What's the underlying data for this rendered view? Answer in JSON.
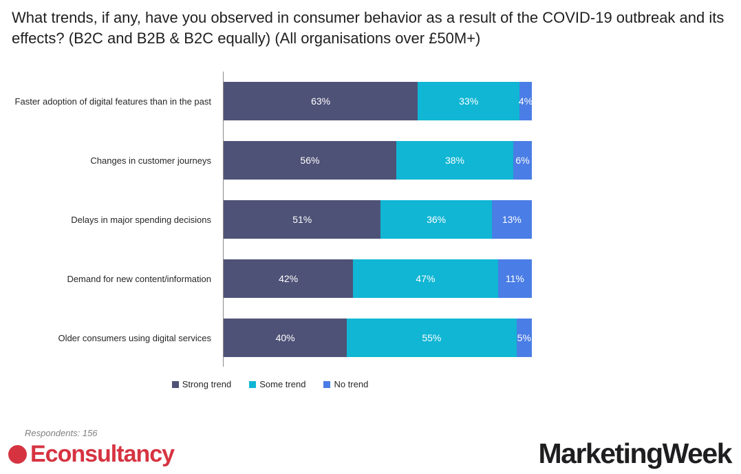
{
  "title": {
    "text": "What trends, if any, have you observed in consumer behavior as a result of the COVID-19 outbreak and its effects? (B2C and B2B & B2C equally) (All organisations over £50M+)"
  },
  "chart_data": {
    "type": "bar",
    "orientation": "horizontal",
    "stacked": true,
    "value_unit": "%",
    "xlim": [
      0,
      100
    ],
    "grid": false,
    "legend_position": "bottom",
    "value_labels": "inside, white",
    "categories": [
      "Faster adoption of digital features than in the past",
      "Changes in customer journeys",
      "Delays in major spending decisions",
      "Demand for new content/information",
      "Older consumers using digital services"
    ],
    "series": [
      {
        "name": "Strong trend",
        "color": "#4f5277",
        "values": [
          63,
          56,
          51,
          42,
          40
        ]
      },
      {
        "name": "Some trend",
        "color": "#10b6d4",
        "values": [
          33,
          38,
          36,
          47,
          55
        ]
      },
      {
        "name": "No trend",
        "color": "#4a7de5",
        "values": [
          4,
          6,
          13,
          11,
          5
        ]
      }
    ]
  },
  "footer": {
    "respondents": "Respondents: 156",
    "econsultancy": {
      "text": "Econsultancy",
      "color": "#d63341"
    },
    "marketingweek": {
      "text": "MarketingWeek",
      "color": "#1e1e20"
    }
  }
}
